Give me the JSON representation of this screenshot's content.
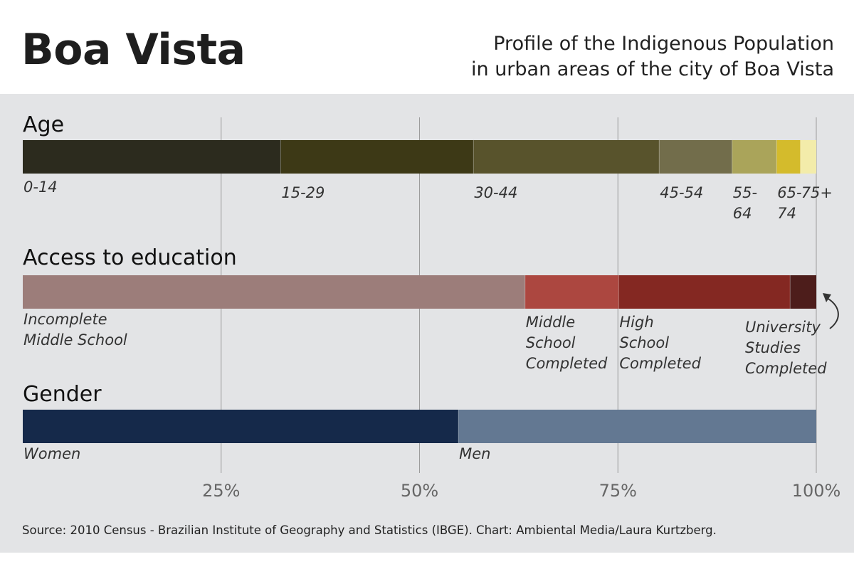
{
  "header": {
    "title": "Boa Vista",
    "subtitle_line1": "Profile of the Indigenous Population",
    "subtitle_line2": "in urban areas of the city of Boa Vista"
  },
  "source": "Source: 2010 Census - Brazilian Institute of Geography and Statistics (IBGE). Chart: Ambiental Media/Laura Kurtzberg.",
  "chart_data": {
    "type": "bar",
    "stacked": true,
    "orientation": "horizontal",
    "xlim": [
      0,
      100
    ],
    "xticks": [
      {
        "value": 25,
        "label": "25%"
      },
      {
        "value": 50,
        "label": "50%"
      },
      {
        "value": 75,
        "label": "75%"
      },
      {
        "value": 100,
        "label": "100%"
      }
    ],
    "grid": true,
    "groups": [
      {
        "label": "Age",
        "segments": [
          {
            "label": "0-14",
            "value": 32.5,
            "color": "#2c2b1e"
          },
          {
            "label": "15-29",
            "value": 24.3,
            "color": "#3d3916"
          },
          {
            "label": "30-44",
            "value": 23.4,
            "color": "#58532c"
          },
          {
            "label": "45-54",
            "value": 9.2,
            "color": "#726d4b"
          },
          {
            "label": "55-64",
            "value": 5.6,
            "color": "#aaa45a"
          },
          {
            "label": "65-74",
            "value": 3.0,
            "color": "#d4bb2c"
          },
          {
            "label": "75+",
            "value": 2.0,
            "color": "#f3ecaa"
          }
        ]
      },
      {
        "label": "Access to education",
        "segments": [
          {
            "label": "Incomplete Middle School",
            "value": 63.3,
            "color": "#9c7d7a"
          },
          {
            "label": "Middle School Completed",
            "value": 11.8,
            "color": "#ac4740"
          },
          {
            "label": "High School Completed",
            "value": 21.6,
            "color": "#842822"
          },
          {
            "label": "University Studies Completed",
            "value": 3.3,
            "color": "#4d1d1b"
          }
        ]
      },
      {
        "label": "Gender",
        "segments": [
          {
            "label": "Women",
            "value": 54.9,
            "color": "#15294a"
          },
          {
            "label": "Men",
            "value": 45.1,
            "color": "#637892"
          }
        ]
      }
    ]
  }
}
